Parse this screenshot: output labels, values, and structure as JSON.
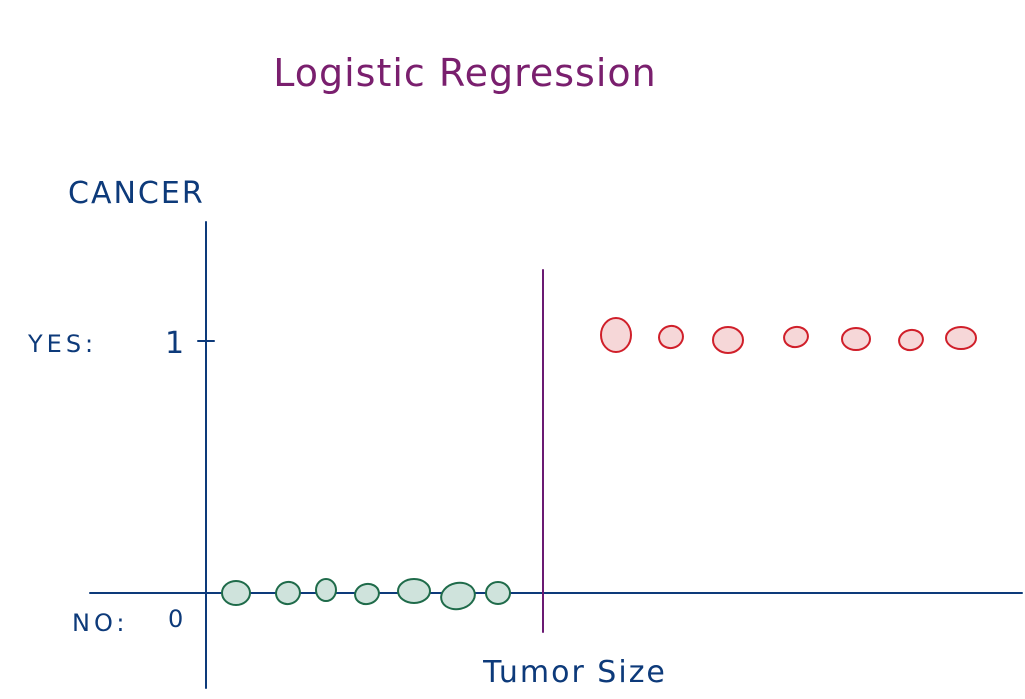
{
  "title": "Logistic Regression",
  "colors": {
    "title": "#7a1f6e",
    "ink": "#0d3a7a",
    "boundary": "#6b1a73",
    "no_stroke": "#1f6b4a",
    "no_fill": "#cfe3dc",
    "yes_stroke": "#d01f2a",
    "yes_fill": "#f6d7d8"
  },
  "chart_data": {
    "type": "scatter",
    "title": "Logistic Regression",
    "ylabel": "CANCER",
    "xlabel": "Tumor Size",
    "y_tick_labels": [
      {
        "label": "YES:",
        "value_label": "1",
        "value": 1
      },
      {
        "label": "NO:",
        "value_label": "0",
        "value": 0
      }
    ],
    "grid": false,
    "decision_boundary": true,
    "series": [
      {
        "class": "no",
        "y": 0,
        "count": 7
      },
      {
        "class": "yes",
        "y": 1,
        "count": 7
      }
    ]
  }
}
